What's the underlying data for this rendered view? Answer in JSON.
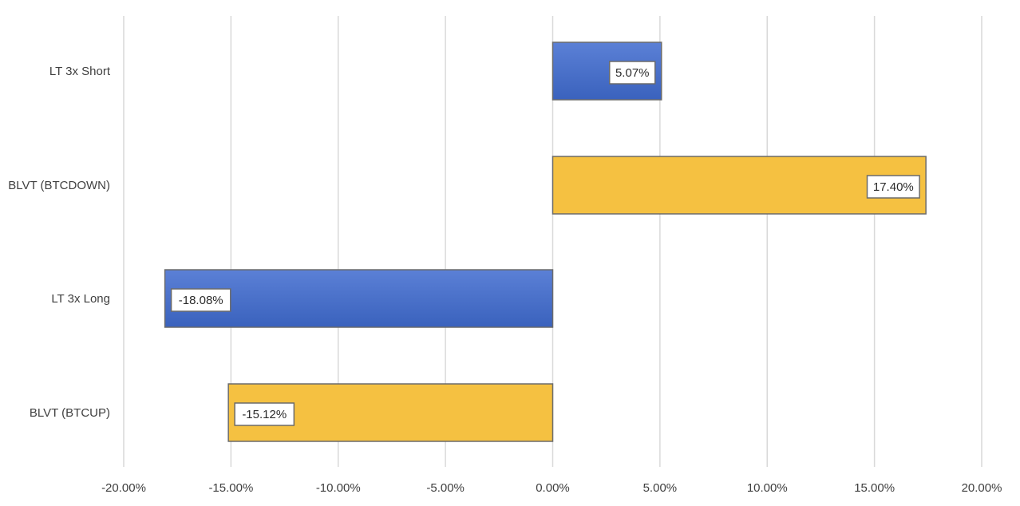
{
  "chart_data": {
    "type": "bar",
    "orientation": "horizontal",
    "title": "",
    "xlabel": "",
    "ylabel": "",
    "xlim": [
      -20,
      20
    ],
    "x_ticks": [
      -20,
      -15,
      -10,
      -5,
      0,
      5,
      10,
      15,
      20
    ],
    "x_tick_labels": [
      "-20.00%",
      "-15.00%",
      "-10.00%",
      "-5.00%",
      "0.00%",
      "5.00%",
      "10.00%",
      "15.00%",
      "20.00%"
    ],
    "grid": "vertical",
    "legend": "none",
    "categories": [
      "LT 3x Short",
      "BLVT (BTCDOWN)",
      "LT 3x Long",
      "BLVT (BTCUP)"
    ],
    "values": [
      5.07,
      17.4,
      -18.08,
      -15.12
    ],
    "data_labels": [
      "5.07%",
      "17.40%",
      "-18.08%",
      "-15.12%"
    ],
    "bar_colors": [
      "#4a6fc9",
      "#f5c141",
      "#4a6fc9",
      "#f5c141"
    ],
    "colors": {
      "blue_top": "#5b80d6",
      "blue_bottom": "#3a62bd",
      "gold": "#f5c141"
    }
  }
}
